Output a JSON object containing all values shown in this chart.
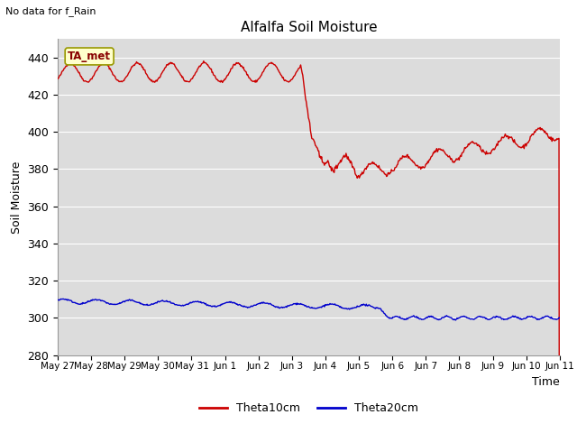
{
  "title": "Alfalfa Soil Moisture",
  "subtitle": "No data for f_Rain",
  "ylabel": "Soil Moisture",
  "xlabel": "Time",
  "ylim": [
    280,
    450
  ],
  "yticks": [
    280,
    300,
    320,
    340,
    360,
    380,
    400,
    420,
    440
  ],
  "background_color": "#dcdcdc",
  "figure_background": "#ffffff",
  "annotation_text": "TA_met",
  "annotation_bg": "#ffffcc",
  "annotation_border": "#cccc00",
  "line1_color": "#cc0000",
  "line2_color": "#0000cc",
  "legend_labels": [
    "Theta10cm",
    "Theta20cm"
  ],
  "x_tick_labels": [
    "May 27",
    "May 28",
    "May 29",
    "May 30",
    "May 31",
    "Jun 1",
    "Jun 2",
    "Jun 3",
    "Jun 4",
    "Jun 5",
    "Jun 6",
    "Jun 7",
    "Jun 8",
    "Jun 9",
    "Jun 10",
    "Jun 11"
  ],
  "num_ticks": 16
}
